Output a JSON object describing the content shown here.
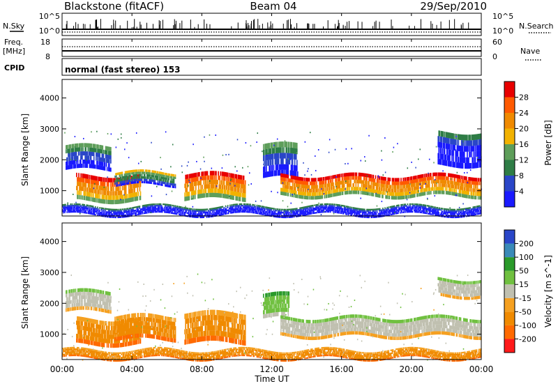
{
  "header": {
    "station": "Blackstone (fitACF)",
    "beam": "Beam 04",
    "date": "29/Sep/2010"
  },
  "noise_panel": {
    "left_label": "N.Sky",
    "left_scale_top": "10^5",
    "left_scale_bottom": "10^0",
    "right_scale_top": "10^5",
    "right_scale_bottom": "10^0",
    "right_label": "N.Search"
  },
  "freq_panel": {
    "left_label_1": "Freq.",
    "left_label_2": "[MHz]",
    "left_tick_top": "18",
    "left_tick_bottom": "8",
    "right_tick_top": "60",
    "right_tick_bottom": "0",
    "right_label": "Nave"
  },
  "cpid_panel": {
    "label": "CPID",
    "text": "normal (fast stereo) 153"
  },
  "colors": {
    "power": [
      "#1a1aff",
      "#2a46c8",
      "#2f7d46",
      "#5e9e5a",
      "#f2b200",
      "#f08a00",
      "#ff5a00",
      "#e80000"
    ],
    "velocity": [
      "#ff1a1a",
      "#ff6a00",
      "#f08a00",
      "#f5a020",
      "#c0c0b0",
      "#70c040",
      "#2a9a2a",
      "#3a8ab8",
      "#2a46c8"
    ]
  },
  "chart_data": [
    {
      "type": "heatmap",
      "quantity": "power",
      "xlabel": "Time UT",
      "ylabel": "Slant Range [km]",
      "x_ticks": [
        "00:00",
        "04:00",
        "08:00",
        "12:00",
        "16:00",
        "20:00",
        "00:00"
      ],
      "y_ticks": [
        1000,
        2000,
        3000,
        4000
      ],
      "ylim": [
        180,
        4600
      ],
      "colorbar": {
        "label": "Power [dB]",
        "ticks": [
          4,
          8,
          12,
          16,
          20,
          24,
          28
        ]
      },
      "bands": [
        {
          "t0": 0.2,
          "t1": 2.8,
          "r0": 1650,
          "r1": 2450,
          "level": 2
        },
        {
          "t0": 0.8,
          "t1": 4.5,
          "r0": 650,
          "r1": 1500,
          "level": 6
        },
        {
          "t0": 3.0,
          "t1": 6.5,
          "r0": 1150,
          "r1": 1600,
          "level": 3
        },
        {
          "t0": 7.0,
          "t1": 10.5,
          "r0": 700,
          "r1": 1550,
          "level": 6
        },
        {
          "t0": 11.5,
          "t1": 13.5,
          "r0": 1400,
          "r1": 2500,
          "level": 2
        },
        {
          "t0": 12.5,
          "t1": 24.0,
          "r0": 800,
          "r1": 1500,
          "level": 6
        },
        {
          "t0": 21.5,
          "t1": 24.0,
          "r0": 1800,
          "r1": 2900,
          "level": 1
        },
        {
          "t0": 0.0,
          "t1": 24.0,
          "r0": 200,
          "r1": 500,
          "level": 1
        }
      ]
    },
    {
      "type": "heatmap",
      "quantity": "velocity",
      "xlabel": "Time UT",
      "ylabel": "Slant Range [km]",
      "x_ticks": [
        "00:00",
        "04:00",
        "08:00",
        "12:00",
        "16:00",
        "20:00",
        "00:00"
      ],
      "y_ticks": [
        1000,
        2000,
        3000,
        4000
      ],
      "ylim": [
        180,
        4600
      ],
      "colorbar": {
        "label": "Velocity [m s^-1]",
        "ticks": [
          "200",
          "100",
          "50",
          "15",
          "-15",
          "-50",
          "-100",
          "-200"
        ]
      },
      "bands": [
        {
          "t0": 0.2,
          "t1": 2.8,
          "r0": 1700,
          "r1": 2400,
          "level": "-15"
        },
        {
          "t0": 0.8,
          "t1": 4.5,
          "r0": 650,
          "r1": 1500,
          "level": "-50"
        },
        {
          "t0": 3.0,
          "t1": 6.5,
          "r0": 800,
          "r1": 1600,
          "level": "-50"
        },
        {
          "t0": 7.0,
          "t1": 10.5,
          "r0": 700,
          "r1": 1700,
          "level": "-50"
        },
        {
          "t0": 11.5,
          "t1": 13.0,
          "r0": 1500,
          "r1": 2300,
          "level": "50"
        },
        {
          "t0": 12.5,
          "t1": 24.0,
          "r0": 900,
          "r1": 1550,
          "level": "-15"
        },
        {
          "t0": 21.5,
          "t1": 24.0,
          "r0": 2200,
          "r1": 2800,
          "level": "-15"
        },
        {
          "t0": 0.0,
          "t1": 24.0,
          "r0": 200,
          "r1": 500,
          "level": "-50"
        }
      ]
    }
  ]
}
